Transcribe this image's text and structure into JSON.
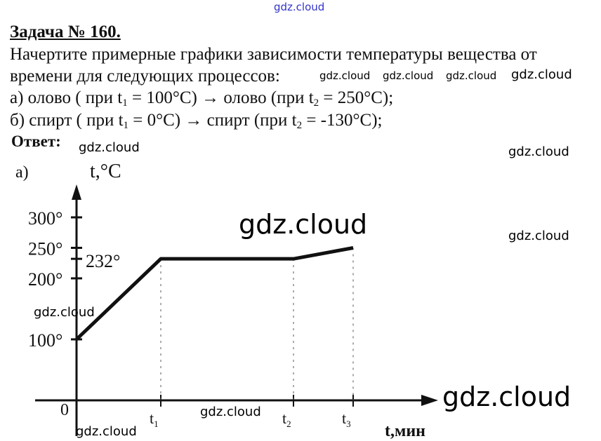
{
  "watermarks": {
    "top": "gdz.cloud",
    "text": "gdz.cloud"
  },
  "problem": {
    "title": "Задача № 160.",
    "statement_line1": "Начертите примерные графики зависимости температуры вещества от",
    "statement_line2": "времени для следующих процессов:",
    "item_a": {
      "prefix": "а) олово ( при t",
      "sub1": "1",
      "mid": " = 100°C) → олово (при t",
      "sub2": "2",
      "end": " = 250°C);"
    },
    "item_b": {
      "prefix": "б) спирт ( при t",
      "sub1": "1",
      "mid": " = 0°C) → спирт (при t",
      "sub2": "2",
      "end": " = -130°C);"
    },
    "answer_label": "Ответ:"
  },
  "graph": {
    "part_label": "а)",
    "origin_label": "0",
    "chart_data": {
      "type": "line",
      "ylabel": "t,°C",
      "xlabel": "t,мин",
      "y_ticks": [
        "100°",
        "200°",
        "250°",
        "300°"
      ],
      "annotation": "232°",
      "x_ticks": [
        "t1",
        "t2",
        "t3"
      ],
      "series": [
        {
          "points": [
            {
              "x": "0",
              "y": 100
            },
            {
              "x": "t1",
              "y": 232
            },
            {
              "x": "t2",
              "y": 232
            },
            {
              "x": "t3",
              "y": 250
            }
          ]
        }
      ],
      "grid": false
    }
  }
}
